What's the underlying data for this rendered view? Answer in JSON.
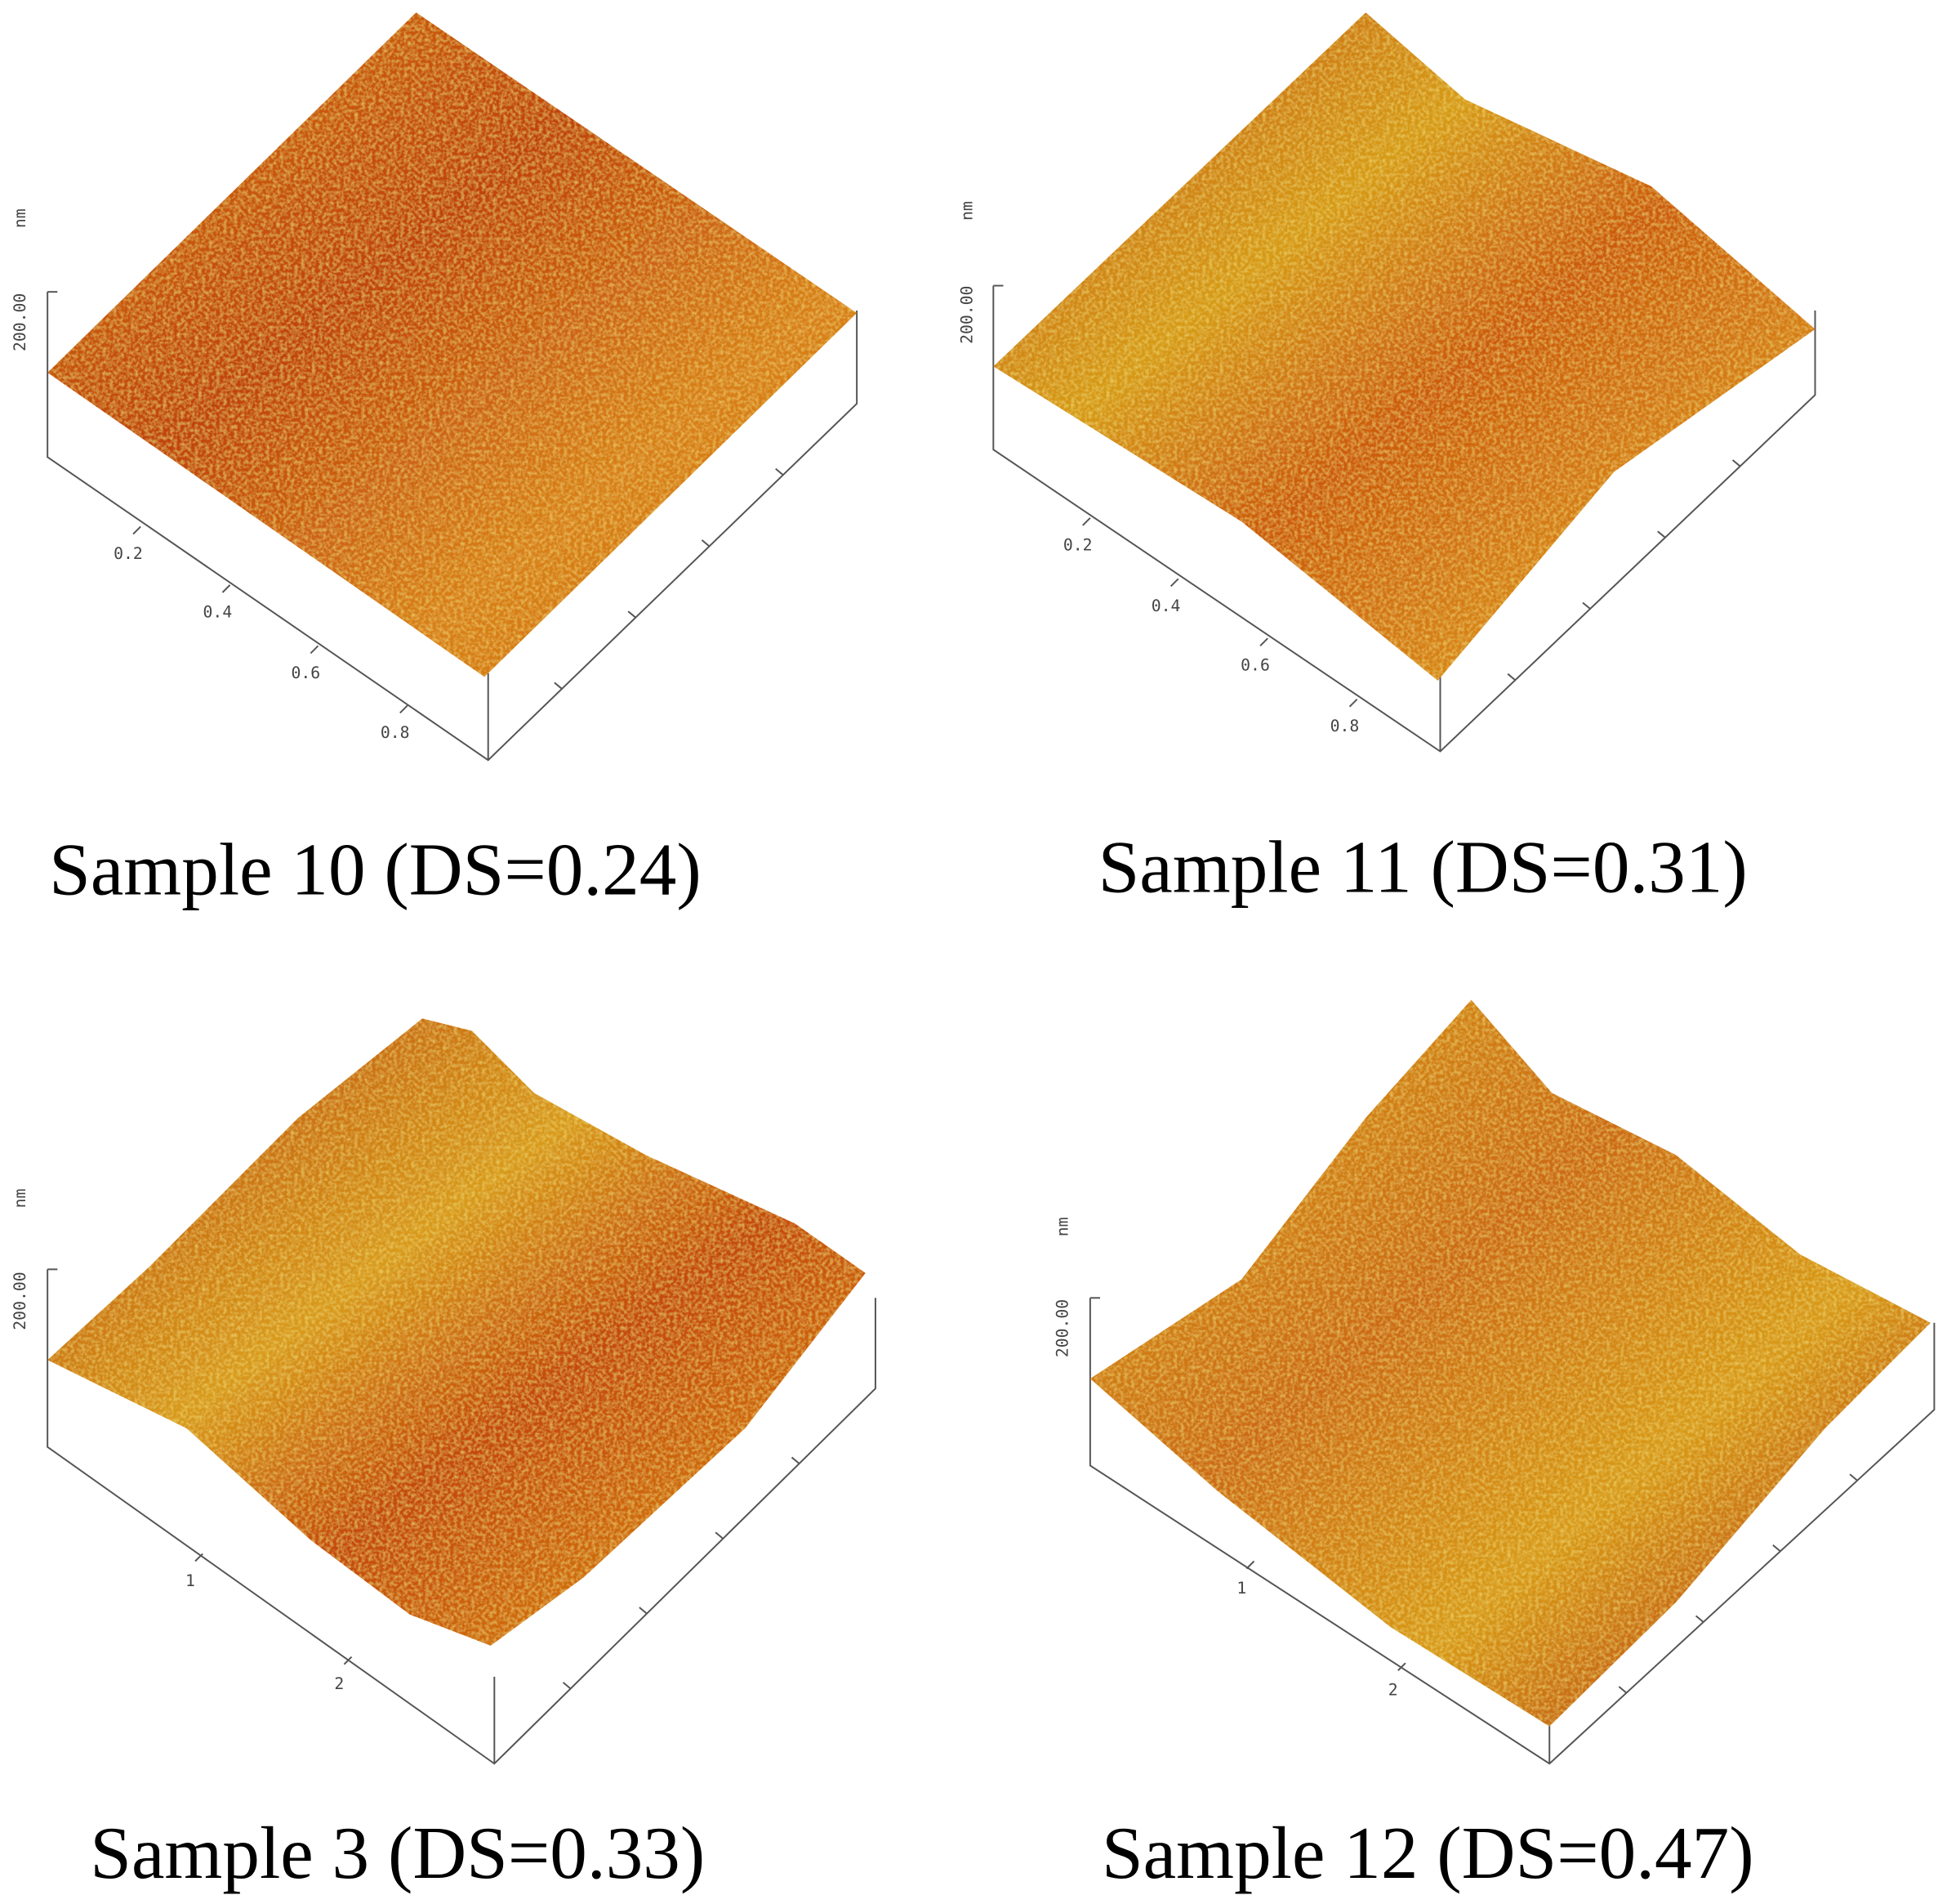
{
  "panels": [
    {
      "caption": "Sample 10 (DS=0.24)",
      "z_unit": "nm",
      "z_label": "200.00",
      "x_ticks": [
        "0.2",
        "0.4",
        "0.6",
        "0.8"
      ]
    },
    {
      "caption": "Sample 11 (DS=0.31)",
      "z_unit": "nm",
      "z_label": "200.00",
      "x_ticks": [
        "0.2",
        "0.4",
        "0.6",
        "0.8"
      ]
    },
    {
      "caption": "Sample 3 (DS=0.33)",
      "z_unit": "nm",
      "z_label": "200.00",
      "x_ticks": [
        "1",
        "2"
      ]
    },
    {
      "caption": "Sample 12 (DS=0.47)",
      "z_unit": "nm",
      "z_label": "200.00",
      "x_ticks": [
        "1",
        "2"
      ]
    }
  ]
}
